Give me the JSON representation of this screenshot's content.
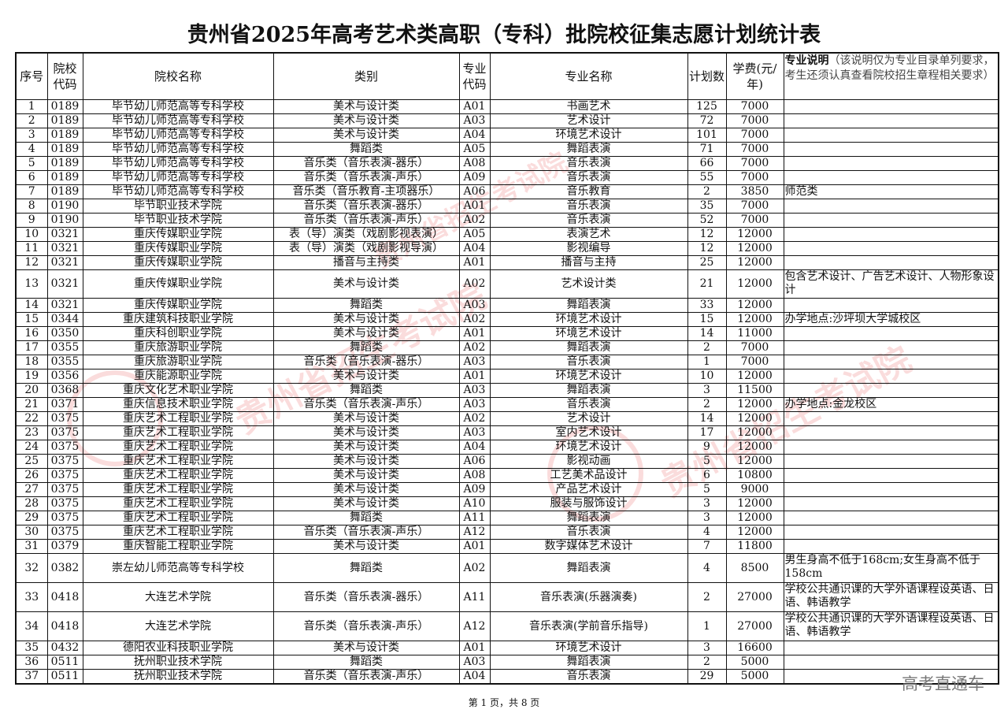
{
  "title": "贵州省2025年高考艺术类高职（专科）批院校征集志愿计划统计表",
  "headers": {
    "seq": "序号",
    "school_code": "院校代码",
    "school_name": "院校名称",
    "category": "类别",
    "major_code": "专业代码",
    "major_name": "专业名称",
    "plan": "计划数",
    "fee": "学费(元/年)",
    "note_bold": "专业说明",
    "note_rest": "（该说明仅为专业目录单列要求，考生还须认真查看院校招生章程相关要求）"
  },
  "rows": [
    [
      "1",
      "0189",
      "毕节幼儿师范高等专科学校",
      "美术与设计类",
      "A01",
      "书画艺术",
      "125",
      "7000",
      ""
    ],
    [
      "2",
      "0189",
      "毕节幼儿师范高等专科学校",
      "美术与设计类",
      "A03",
      "艺术设计",
      "72",
      "7000",
      ""
    ],
    [
      "3",
      "0189",
      "毕节幼儿师范高等专科学校",
      "美术与设计类",
      "A04",
      "环境艺术设计",
      "101",
      "7000",
      ""
    ],
    [
      "4",
      "0189",
      "毕节幼儿师范高等专科学校",
      "舞蹈类",
      "A05",
      "舞蹈表演",
      "71",
      "7000",
      ""
    ],
    [
      "5",
      "0189",
      "毕节幼儿师范高等专科学校",
      "音乐类（音乐表演-器乐）",
      "A08",
      "音乐表演",
      "66",
      "7000",
      ""
    ],
    [
      "6",
      "0189",
      "毕节幼儿师范高等专科学校",
      "音乐类（音乐表演-声乐）",
      "A09",
      "音乐表演",
      "55",
      "7000",
      ""
    ],
    [
      "7",
      "0189",
      "毕节幼儿师范高等专科学校",
      "音乐类（音乐教育-主项器乐）",
      "A06",
      "音乐教育",
      "2",
      "3850",
      "师范类"
    ],
    [
      "8",
      "0190",
      "毕节职业技术学院",
      "音乐类（音乐表演-器乐）",
      "A01",
      "音乐表演",
      "35",
      "7000",
      ""
    ],
    [
      "9",
      "0190",
      "毕节职业技术学院",
      "音乐类（音乐表演-声乐）",
      "A02",
      "音乐表演",
      "52",
      "7000",
      ""
    ],
    [
      "10",
      "0321",
      "重庆传媒职业学院",
      "表（导）演类（戏剧影视表演）",
      "A05",
      "表演艺术",
      "12",
      "12000",
      ""
    ],
    [
      "11",
      "0321",
      "重庆传媒职业学院",
      "表（导）演类（戏剧影视导演）",
      "A04",
      "影视编导",
      "12",
      "12000",
      ""
    ],
    [
      "12",
      "0321",
      "重庆传媒职业学院",
      "播音与主持类",
      "A01",
      "播音与主持",
      "25",
      "12000",
      ""
    ],
    [
      "13",
      "0321",
      "重庆传媒职业学院",
      "美术与设计类",
      "A02",
      "艺术设计类",
      "21",
      "12000",
      "包含艺术设计、广告艺术设计、人物形象设计"
    ],
    [
      "14",
      "0321",
      "重庆传媒职业学院",
      "舞蹈类",
      "A03",
      "舞蹈表演",
      "33",
      "12000",
      ""
    ],
    [
      "15",
      "0344",
      "重庆建筑科技职业学院",
      "美术与设计类",
      "A02",
      "环境艺术设计",
      "15",
      "12000",
      "办学地点:沙坪坝大学城校区"
    ],
    [
      "16",
      "0350",
      "重庆科创职业学院",
      "美术与设计类",
      "A01",
      "环境艺术设计",
      "14",
      "11000",
      ""
    ],
    [
      "17",
      "0355",
      "重庆旅游职业学院",
      "舞蹈类",
      "A02",
      "舞蹈表演",
      "2",
      "7000",
      ""
    ],
    [
      "18",
      "0355",
      "重庆旅游职业学院",
      "音乐类（音乐表演-器乐）",
      "A03",
      "音乐表演",
      "1",
      "7000",
      ""
    ],
    [
      "19",
      "0356",
      "重庆能源职业学院",
      "美术与设计类",
      "A01",
      "环境艺术设计",
      "10",
      "12000",
      ""
    ],
    [
      "20",
      "0368",
      "重庆文化艺术职业学院",
      "舞蹈类",
      "A03",
      "舞蹈表演",
      "3",
      "11500",
      ""
    ],
    [
      "21",
      "0371",
      "重庆信息技术职业学院",
      "音乐类（音乐表演-声乐）",
      "A03",
      "音乐表演",
      "2",
      "12000",
      "办学地点:金龙校区"
    ],
    [
      "22",
      "0375",
      "重庆艺术工程职业学院",
      "美术与设计类",
      "A02",
      "艺术设计",
      "14",
      "12000",
      ""
    ],
    [
      "23",
      "0375",
      "重庆艺术工程职业学院",
      "美术与设计类",
      "A03",
      "室内艺术设计",
      "17",
      "12000",
      ""
    ],
    [
      "24",
      "0375",
      "重庆艺术工程职业学院",
      "美术与设计类",
      "A04",
      "环境艺术设计",
      "9",
      "12000",
      ""
    ],
    [
      "25",
      "0375",
      "重庆艺术工程职业学院",
      "美术与设计类",
      "A06",
      "影视动画",
      "5",
      "12000",
      ""
    ],
    [
      "26",
      "0375",
      "重庆艺术工程职业学院",
      "美术与设计类",
      "A08",
      "工艺美术品设计",
      "6",
      "10800",
      ""
    ],
    [
      "27",
      "0375",
      "重庆艺术工程职业学院",
      "美术与设计类",
      "A09",
      "产品艺术设计",
      "5",
      "9000",
      ""
    ],
    [
      "28",
      "0375",
      "重庆艺术工程职业学院",
      "美术与设计类",
      "A10",
      "服装与服饰设计",
      "3",
      "12000",
      ""
    ],
    [
      "29",
      "0375",
      "重庆艺术工程职业学院",
      "舞蹈类",
      "A11",
      "舞蹈表演",
      "3",
      "12000",
      ""
    ],
    [
      "30",
      "0375",
      "重庆艺术工程职业学院",
      "音乐类（音乐表演-声乐）",
      "A12",
      "音乐表演",
      "4",
      "12000",
      ""
    ],
    [
      "31",
      "0379",
      "重庆智能工程职业学院",
      "美术与设计类",
      "A01",
      "数字媒体艺术设计",
      "7",
      "11800",
      ""
    ],
    [
      "32",
      "0382",
      "崇左幼儿师范高等专科学校",
      "舞蹈类",
      "A02",
      "舞蹈表演",
      "4",
      "8500",
      "男生身高不低于168cm;女生身高不低于158cm"
    ],
    [
      "33",
      "0418",
      "大连艺术学院",
      "音乐类（音乐表演-器乐）",
      "A11",
      "音乐表演(乐器演奏)",
      "2",
      "27000",
      "学校公共通识课的大学外语课程设英语、日语、韩语教学"
    ],
    [
      "34",
      "0418",
      "大连艺术学院",
      "音乐类（音乐表演-声乐）",
      "A12",
      "音乐表演(学前音乐指导)",
      "1",
      "27000",
      "学校公共通识课的大学外语课程设英语、日语、韩语教学"
    ],
    [
      "35",
      "0432",
      "德阳农业科技职业学院",
      "美术与设计类",
      "A01",
      "环境艺术设计",
      "3",
      "16600",
      ""
    ],
    [
      "36",
      "0511",
      "抚州职业技术学院",
      "舞蹈类",
      "A03",
      "舞蹈表演",
      "2",
      "5000",
      ""
    ],
    [
      "37",
      "0511",
      "抚州职业技术学院",
      "音乐类（音乐表演-声乐）",
      "A04",
      "音乐表演",
      "29",
      "5000",
      ""
    ]
  ],
  "tall_rows": [
    "13"
  ],
  "tall2_rows": [
    "32",
    "33",
    "34"
  ],
  "footer": "第 1 页，共 8 页",
  "brand_watermark": "高考直通车",
  "seal_watermark": "贵州省招生考试院",
  "colors": {
    "watermark_red": "#e63c3c",
    "text": "#111111",
    "brand_gray": "#777777"
  }
}
